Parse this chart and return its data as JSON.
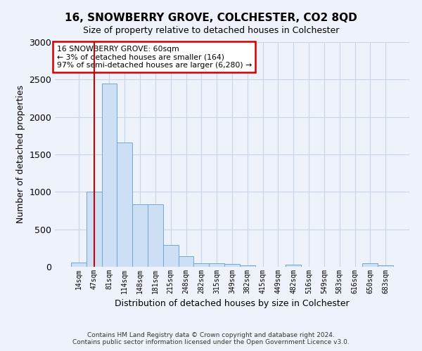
{
  "title": "16, SNOWBERRY GROVE, COLCHESTER, CO2 8QD",
  "subtitle": "Size of property relative to detached houses in Colchester",
  "xlabel": "Distribution of detached houses by size in Colchester",
  "ylabel": "Number of detached properties",
  "categories": [
    "14sqm",
    "47sqm",
    "81sqm",
    "114sqm",
    "148sqm",
    "181sqm",
    "215sqm",
    "248sqm",
    "282sqm",
    "315sqm",
    "349sqm",
    "382sqm",
    "415sqm",
    "449sqm",
    "482sqm",
    "516sqm",
    "549sqm",
    "583sqm",
    "616sqm",
    "650sqm",
    "683sqm"
  ],
  "values": [
    55,
    1000,
    2450,
    1660,
    830,
    830,
    290,
    140,
    50,
    50,
    35,
    20,
    0,
    0,
    30,
    0,
    0,
    0,
    0,
    50,
    20
  ],
  "bar_color": "#ccdff5",
  "bar_edge_color": "#6fa8d4",
  "red_line_index": 1.5,
  "annotation_line1": "16 SNOWBERRY GROVE: 60sqm",
  "annotation_line2": "← 3% of detached houses are smaller (164)",
  "annotation_line3": "97% of semi-detached houses are larger (6,280) →",
  "annotation_box_color": "#ffffff",
  "annotation_box_edge_color": "#cc0000",
  "red_line_color": "#cc0000",
  "ylim": [
    0,
    3000
  ],
  "yticks": [
    0,
    500,
    1000,
    1500,
    2000,
    2500,
    3000
  ],
  "grid_color": "#c8d4e8",
  "footer_line1": "Contains HM Land Registry data © Crown copyright and database right 2024.",
  "footer_line2": "Contains public sector information licensed under the Open Government Licence v3.0.",
  "bg_color": "#eef2fa",
  "title_fontsize": 11,
  "subtitle_fontsize": 9,
  "ylabel_fontsize": 9,
  "xlabel_fontsize": 9,
  "tick_fontsize": 7,
  "footer_fontsize": 6.5
}
